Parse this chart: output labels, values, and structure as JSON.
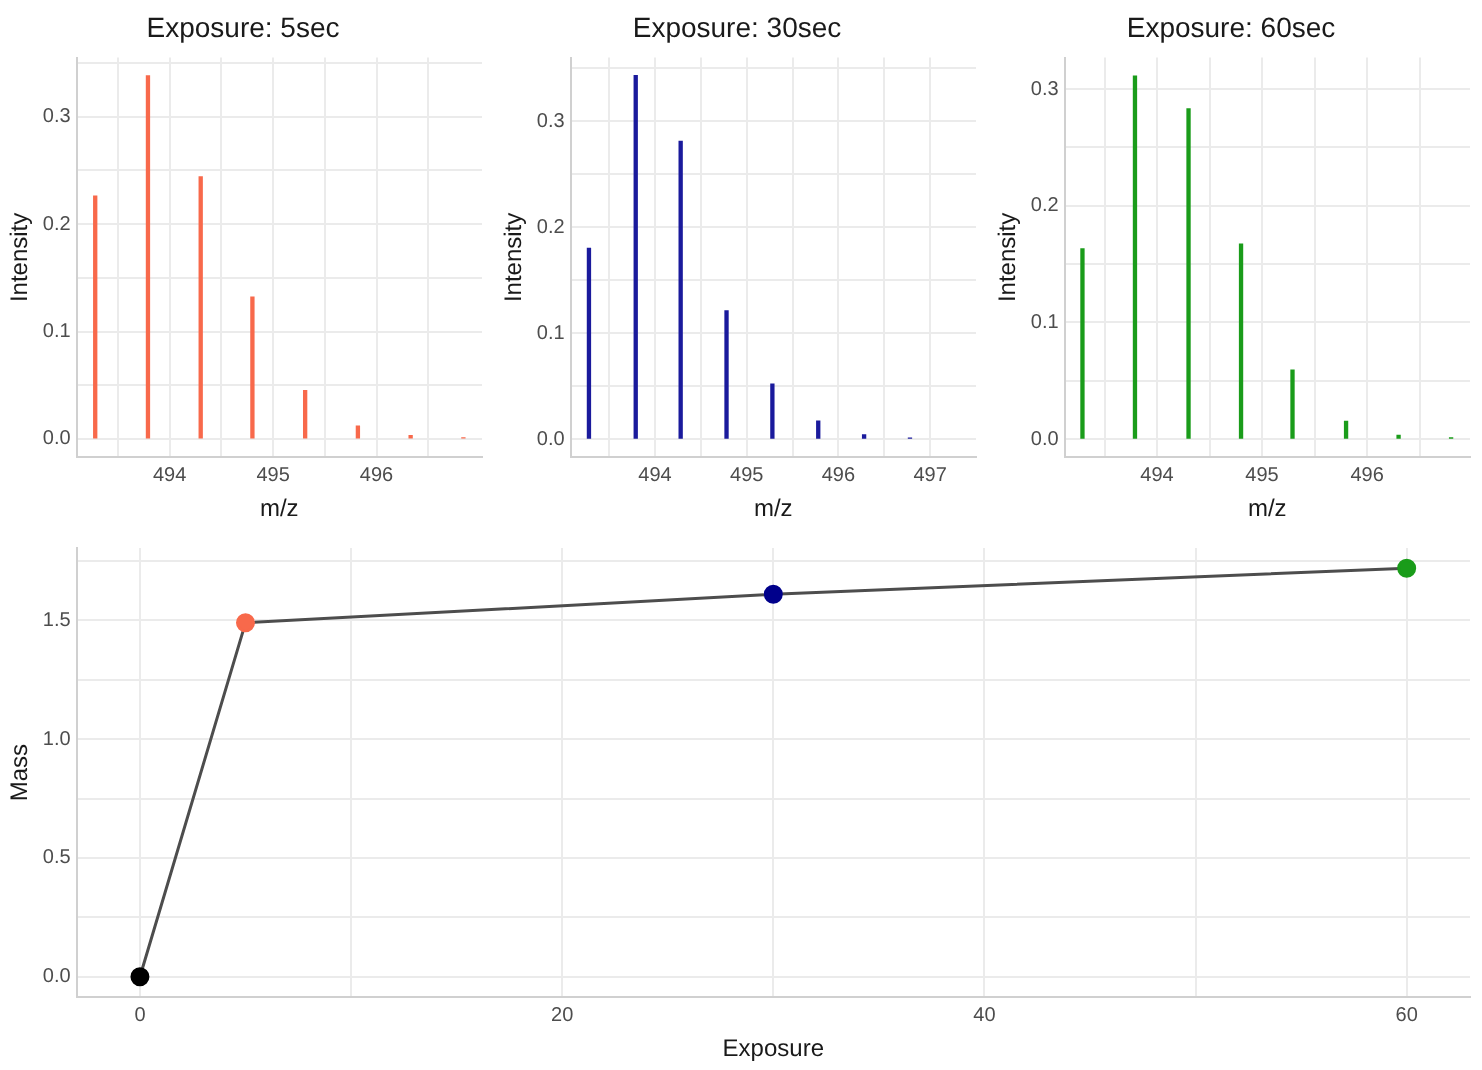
{
  "chart_data": [
    {
      "type": "bar",
      "title": "Exposure: 5sec",
      "xlabel": "m/z",
      "ylabel": "Intensity",
      "grid": true,
      "series": [
        {
          "color": "#f8694b",
          "x": [
            493.28,
            493.79,
            494.3,
            494.8,
            495.31,
            495.82,
            496.33,
            496.84
          ],
          "values": [
            0.226,
            0.338,
            0.244,
            0.132,
            0.045,
            0.012,
            0.003,
            0.001
          ]
        }
      ],
      "xlim": [
        493.1,
        497.02
      ],
      "xticks": [
        {
          "value": 493.5,
          "label": null
        },
        494,
        {
          "value": 494.5,
          "label": null
        },
        495,
        {
          "value": 495.5,
          "label": null
        },
        496,
        {
          "value": 496.5,
          "label": null
        }
      ],
      "ylim": [
        -0.017,
        0.355
      ],
      "yticks": [
        {
          "value": 0,
          "label": "0.0"
        },
        {
          "value": 0.05,
          "label": null
        },
        0.1,
        {
          "value": 0.15,
          "label": null
        },
        0.2,
        {
          "value": 0.25,
          "label": null
        },
        0.3,
        {
          "value": 0.35,
          "label": null
        }
      ]
    },
    {
      "type": "bar",
      "title": "Exposure: 30sec",
      "xlabel": "m/z",
      "ylabel": "Intensity",
      "grid": true,
      "series": [
        {
          "color": "#1a1a9c",
          "x": [
            493.28,
            493.79,
            494.28,
            494.78,
            495.28,
            495.78,
            496.28,
            496.78
          ],
          "values": [
            0.18,
            0.343,
            0.281,
            0.121,
            0.052,
            0.017,
            0.004,
            0.001
          ]
        }
      ],
      "xlim": [
        493.08,
        497.5
      ],
      "xticks": [
        {
          "value": 493.5,
          "label": null
        },
        494,
        {
          "value": 494.5,
          "label": null
        },
        495,
        {
          "value": 495.5,
          "label": null
        },
        496,
        {
          "value": 496.5,
          "label": null
        },
        497
      ],
      "ylim": [
        -0.017,
        0.36
      ],
      "yticks": [
        {
          "value": 0,
          "label": "0.0"
        },
        {
          "value": 0.05,
          "label": null
        },
        0.1,
        {
          "value": 0.15,
          "label": null
        },
        0.2,
        {
          "value": 0.25,
          "label": null
        },
        0.3,
        {
          "value": 0.35,
          "label": null
        }
      ]
    },
    {
      "type": "bar",
      "title": "Exposure: 60sec",
      "xlabel": "m/z",
      "ylabel": "Intensity",
      "grid": true,
      "series": [
        {
          "color": "#1a9c1a",
          "x": [
            493.29,
            493.79,
            494.3,
            494.8,
            495.29,
            495.8,
            496.3,
            496.8
          ],
          "values": [
            0.163,
            0.311,
            0.283,
            0.167,
            0.059,
            0.015,
            0.003,
            0.001
          ]
        }
      ],
      "xlim": [
        493.12,
        496.98
      ],
      "xticks": [
        {
          "value": 493.5,
          "label": null
        },
        494,
        {
          "value": 494.5,
          "label": null
        },
        495,
        {
          "value": 495.5,
          "label": null
        },
        496,
        {
          "value": 496.5,
          "label": null
        }
      ],
      "ylim": [
        -0.0156,
        0.327
      ],
      "yticks": [
        {
          "value": 0,
          "label": "0.0"
        },
        {
          "value": 0.05,
          "label": null
        },
        0.1,
        {
          "value": 0.15,
          "label": null
        },
        0.2,
        {
          "value": 0.25,
          "label": null
        },
        0.3
      ]
    },
    {
      "type": "line",
      "xlabel": "Exposure",
      "ylabel": "Mass",
      "grid": true,
      "marker": "circle",
      "line_style": "solid",
      "series": [
        {
          "color": "#4d4d4d",
          "colors": [
            "#000000",
            "#f8694b",
            "#00008b",
            "#1a9c1a"
          ],
          "x": [
            0,
            5,
            30,
            60
          ],
          "values": [
            0,
            1.49,
            1.61,
            1.72
          ]
        }
      ],
      "xlim": [
        -3,
        63
      ],
      "xticks": [
        0,
        {
          "value": 10,
          "label": null
        },
        20,
        {
          "value": 30,
          "label": null
        },
        40,
        {
          "value": 50,
          "label": null
        },
        60
      ],
      "ylim": [
        -0.086,
        1.805
      ],
      "yticks": [
        {
          "value": 0,
          "label": "0.0"
        },
        {
          "value": 0.25,
          "label": null
        },
        0.5,
        {
          "value": 0.75,
          "label": null
        },
        {
          "value": 1,
          "label": "1.0"
        },
        {
          "value": 1.25,
          "label": null
        },
        1.5,
        {
          "value": 1.75,
          "label": null
        }
      ]
    }
  ]
}
